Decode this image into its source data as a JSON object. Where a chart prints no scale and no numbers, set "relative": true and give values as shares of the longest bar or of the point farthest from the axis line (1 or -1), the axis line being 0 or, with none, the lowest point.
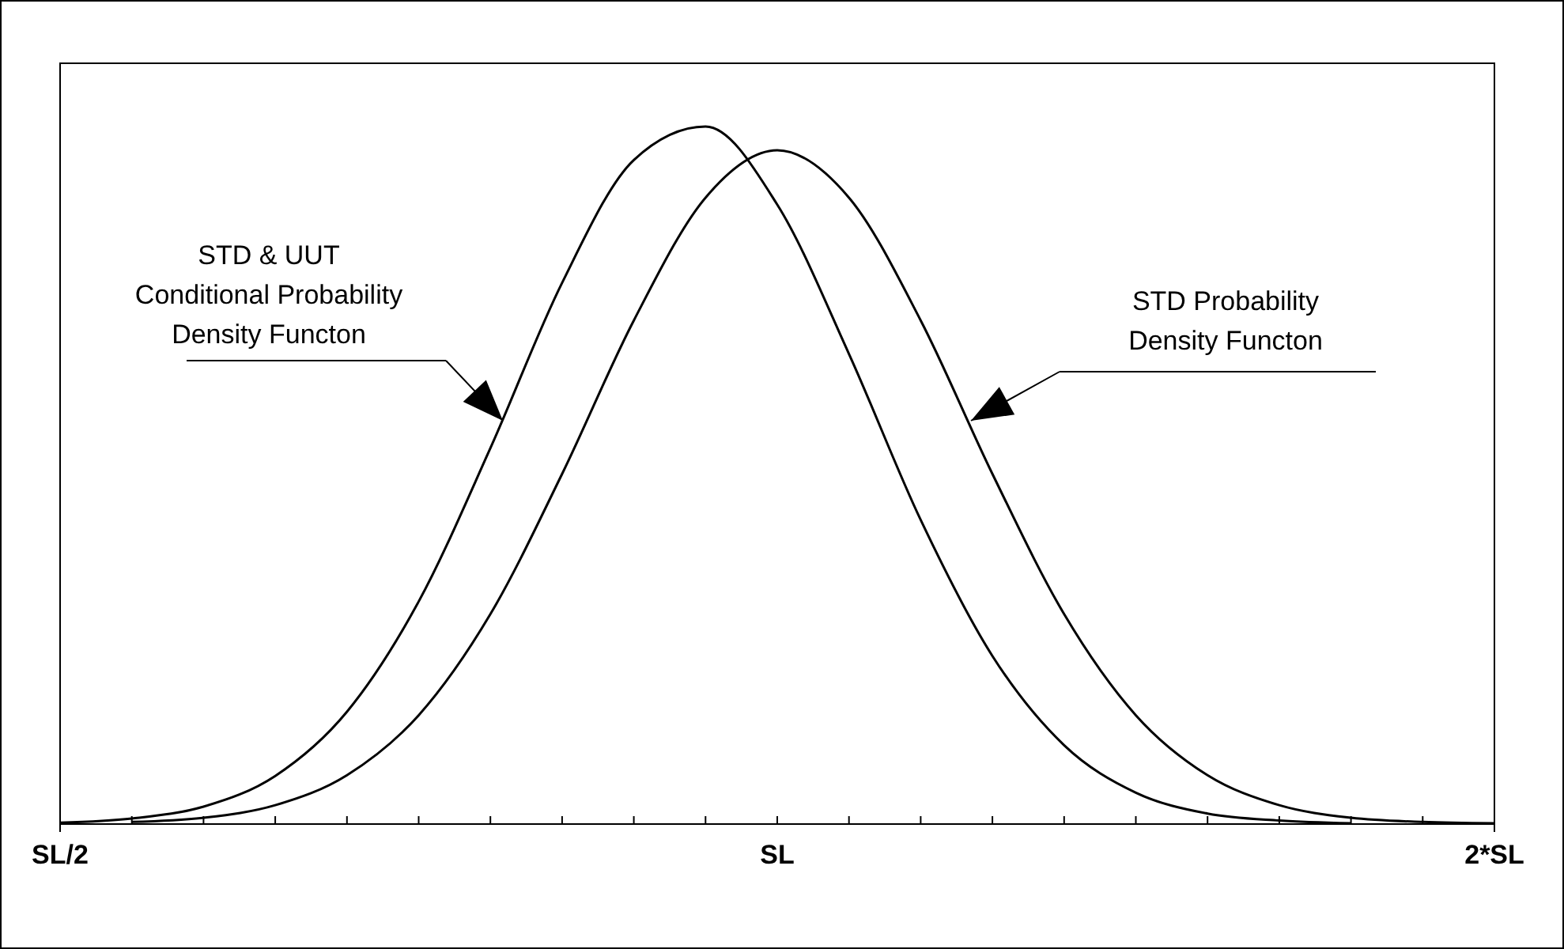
{
  "chart_data": {
    "type": "line",
    "relative": true,
    "marker": "none",
    "line_style": "solid",
    "grid": false,
    "categories": [
      "SL/2",
      null,
      null,
      null,
      null,
      null,
      null,
      null,
      null,
      null,
      "SL",
      null,
      null,
      null,
      null,
      null,
      null,
      null,
      null,
      null,
      "2*SL"
    ],
    "series": [
      {
        "color": "#000000",
        "values": [
          0.002,
          0.008,
          0.025,
          0.069,
          0.161,
          0.319,
          0.539,
          0.776,
          0.952,
          1,
          0.888,
          0.674,
          0.436,
          0.241,
          0.113,
          0.045,
          0.015,
          0.005,
          0.001,
          null,
          null
        ]
      },
      {
        "color": "#000000",
        "values": [
          null,
          0.003,
          0.009,
          0.027,
          0.07,
          0.156,
          0.301,
          0.502,
          0.722,
          0.898,
          0.966,
          0.898,
          0.722,
          0.502,
          0.301,
          0.156,
          0.07,
          0.027,
          0.009,
          0.003,
          0.001
        ]
      }
    ],
    "annotations": [
      "STD & UUT\nConditional Probability\nDensity Functon",
      "STD Probability\nDensity Functon"
    ]
  }
}
